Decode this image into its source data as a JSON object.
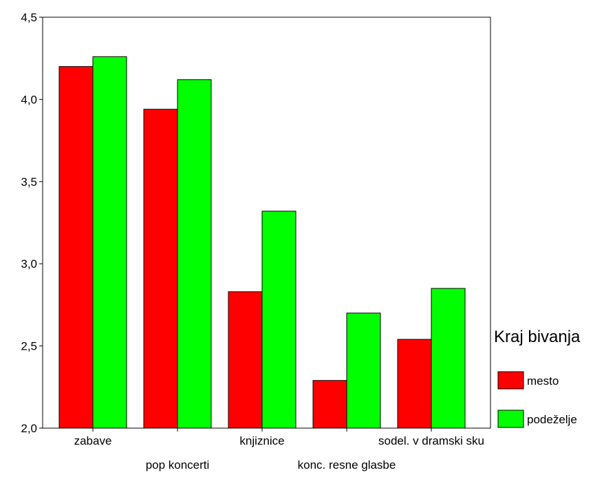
{
  "chart_data": {
    "type": "bar",
    "title": "",
    "xlabel": "",
    "ylabel": "",
    "ylim": [
      2.0,
      4.5
    ],
    "yticks": [
      "2,0",
      "2,5",
      "3,0",
      "3,5",
      "4,0",
      "4,5"
    ],
    "ytick_values": [
      2.0,
      2.5,
      3.0,
      3.5,
      4.0,
      4.5
    ],
    "categories": [
      "zabave",
      "pop koncerti",
      "knjiznice",
      "konc. resne glasbe",
      "sodel. v dramski sku"
    ],
    "series": [
      {
        "name": "mesto",
        "color": "#ff0000",
        "values": [
          4.2,
          3.94,
          2.83,
          2.29,
          2.54
        ]
      },
      {
        "name": "podeželje",
        "color": "#00ff00",
        "values": [
          4.26,
          4.12,
          3.32,
          2.7,
          2.85
        ]
      }
    ],
    "grid": false,
    "legend": {
      "title": "Kraj bivanja",
      "placement": "right"
    }
  }
}
